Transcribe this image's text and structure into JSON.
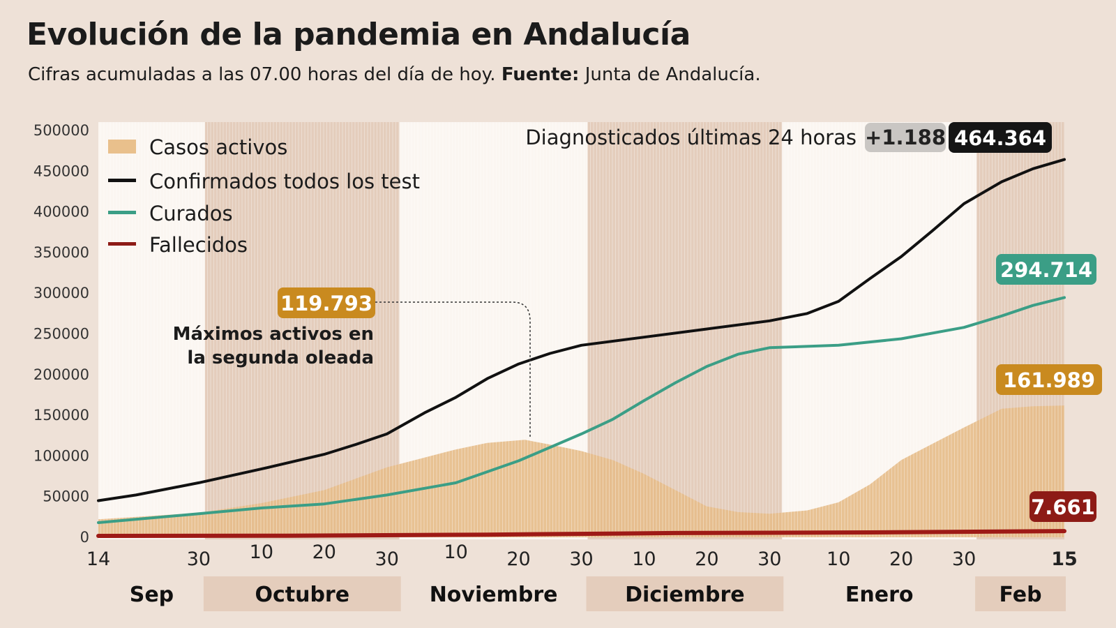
{
  "title": "Evolución de la pandemia en Andalucía",
  "subtitle": {
    "text": "Cifras acumuladas a las 07.00 horas del día de hoy.",
    "source_label": "Fuente:",
    "source": "Junta de Andalucía."
  },
  "chart_data": {
    "type": "line",
    "title": "Evolución de la pandemia en Andalucía",
    "ylim": [
      0,
      500000
    ],
    "yticks": [
      0,
      50000,
      100000,
      150000,
      200000,
      250000,
      300000,
      350000,
      400000,
      450000,
      500000
    ],
    "xrange": [
      "2020-09-14",
      "2021-02-15"
    ],
    "xticks": [
      {
        "date": "2020-09-14",
        "label": "14"
      },
      {
        "date": "2020-09-30",
        "label": "30"
      },
      {
        "date": "2020-10-10",
        "label": "10"
      },
      {
        "date": "2020-10-20",
        "label": "20"
      },
      {
        "date": "2020-10-30",
        "label": "30"
      },
      {
        "date": "2020-11-10",
        "label": "10"
      },
      {
        "date": "2020-11-20",
        "label": "20"
      },
      {
        "date": "2020-11-30",
        "label": "30"
      },
      {
        "date": "2020-12-10",
        "label": "10"
      },
      {
        "date": "2020-12-20",
        "label": "20"
      },
      {
        "date": "2020-12-30",
        "label": "30"
      },
      {
        "date": "2021-01-10",
        "label": "10"
      },
      {
        "date": "2021-01-20",
        "label": "20"
      },
      {
        "date": "2021-01-30",
        "label": "30"
      },
      {
        "date": "2021-02-15",
        "label": "15"
      }
    ],
    "months": [
      {
        "label": "Sep",
        "start": "2020-09-14",
        "end": "2020-10-01",
        "shaded": false
      },
      {
        "label": "Octubre",
        "start": "2020-10-01",
        "end": "2020-11-01",
        "shaded": true
      },
      {
        "label": "Noviembre",
        "start": "2020-11-01",
        "end": "2020-12-01",
        "shaded": false
      },
      {
        "label": "Diciembre",
        "start": "2020-12-01",
        "end": "2021-01-01",
        "shaded": true
      },
      {
        "label": "Enero",
        "start": "2021-01-01",
        "end": "2021-02-01",
        "shaded": false
      },
      {
        "label": "Feb",
        "start": "2021-02-01",
        "end": "2021-02-15",
        "shaded": true
      }
    ],
    "grid": "vertical daily lines",
    "legend_position": "top-left",
    "series": [
      {
        "name": "Casos activos",
        "kind": "area",
        "color": "#e6bd8b",
        "points": [
          [
            "2020-09-14",
            22000
          ],
          [
            "2020-09-30",
            30000
          ],
          [
            "2020-10-10",
            42000
          ],
          [
            "2020-10-20",
            58000
          ],
          [
            "2020-10-30",
            86000
          ],
          [
            "2020-11-05",
            98000
          ],
          [
            "2020-11-10",
            108000
          ],
          [
            "2020-11-15",
            116000
          ],
          [
            "2020-11-21",
            119793
          ],
          [
            "2020-11-25",
            114000
          ],
          [
            "2020-11-30",
            106000
          ],
          [
            "2020-12-05",
            95000
          ],
          [
            "2020-12-10",
            78000
          ],
          [
            "2020-12-15",
            58000
          ],
          [
            "2020-12-20",
            38000
          ],
          [
            "2020-12-25",
            31000
          ],
          [
            "2020-12-30",
            29000
          ],
          [
            "2021-01-05",
            33000
          ],
          [
            "2021-01-10",
            43000
          ],
          [
            "2021-01-15",
            65000
          ],
          [
            "2021-01-20",
            95000
          ],
          [
            "2021-01-25",
            115000
          ],
          [
            "2021-01-30",
            135000
          ],
          [
            "2021-02-05",
            158000
          ],
          [
            "2021-02-10",
            161000
          ],
          [
            "2021-02-15",
            161989
          ]
        ]
      },
      {
        "name": "Confirmados todos los test",
        "kind": "line",
        "color": "#111111",
        "points": [
          [
            "2020-09-14",
            45000
          ],
          [
            "2020-09-20",
            52000
          ],
          [
            "2020-09-30",
            67000
          ],
          [
            "2020-10-10",
            84000
          ],
          [
            "2020-10-20",
            102000
          ],
          [
            "2020-10-25",
            114000
          ],
          [
            "2020-10-30",
            127000
          ],
          [
            "2020-11-05",
            153000
          ],
          [
            "2020-11-10",
            172000
          ],
          [
            "2020-11-15",
            195000
          ],
          [
            "2020-11-20",
            213000
          ],
          [
            "2020-11-25",
            226000
          ],
          [
            "2020-11-30",
            236000
          ],
          [
            "2020-12-10",
            246000
          ],
          [
            "2020-12-20",
            256000
          ],
          [
            "2020-12-30",
            266000
          ],
          [
            "2021-01-05",
            275000
          ],
          [
            "2021-01-10",
            290000
          ],
          [
            "2021-01-15",
            318000
          ],
          [
            "2021-01-20",
            345000
          ],
          [
            "2021-01-25",
            377000
          ],
          [
            "2021-01-30",
            410000
          ],
          [
            "2021-02-05",
            437000
          ],
          [
            "2021-02-10",
            453000
          ],
          [
            "2021-02-15",
            464364
          ]
        ]
      },
      {
        "name": "Curados",
        "kind": "line",
        "color": "#3b9e86",
        "points": [
          [
            "2020-09-14",
            18000
          ],
          [
            "2020-09-30",
            29000
          ],
          [
            "2020-10-10",
            36000
          ],
          [
            "2020-10-20",
            41000
          ],
          [
            "2020-10-30",
            52000
          ],
          [
            "2020-11-10",
            67000
          ],
          [
            "2020-11-20",
            94000
          ],
          [
            "2020-11-30",
            127000
          ],
          [
            "2020-12-05",
            145000
          ],
          [
            "2020-12-10",
            168000
          ],
          [
            "2020-12-15",
            190000
          ],
          [
            "2020-12-20",
            210000
          ],
          [
            "2020-12-25",
            225000
          ],
          [
            "2020-12-30",
            233000
          ],
          [
            "2021-01-10",
            236000
          ],
          [
            "2021-01-20",
            244000
          ],
          [
            "2021-01-30",
            258000
          ],
          [
            "2021-02-05",
            272000
          ],
          [
            "2021-02-10",
            285000
          ],
          [
            "2021-02-15",
            294714
          ]
        ]
      },
      {
        "name": "Fallecidos",
        "kind": "line",
        "color": "#9e1a16",
        "points": [
          [
            "2020-09-14",
            1700
          ],
          [
            "2020-10-14",
            2000
          ],
          [
            "2020-11-15",
            3300
          ],
          [
            "2020-12-15",
            5200
          ],
          [
            "2021-01-15",
            6000
          ],
          [
            "2021-02-15",
            7661
          ]
        ]
      }
    ],
    "annotations": {
      "diagnosed_label": "Diagnosticados últimas 24 horas",
      "diagnosed_delta": "+1.188",
      "confirmed_total": "464.364",
      "recovered_total": "294.714",
      "active_total": "161.989",
      "deaths_total": "7.661",
      "peak_value": "119.793",
      "peak_date": "2020-11-21",
      "peak_text_1": "Máximos activos en",
      "peak_text_2": "la segunda oleada"
    }
  },
  "colors": {
    "background": "#eee1d7",
    "band": "#e4cdbc",
    "plot": "#fbf6f1",
    "active_box": "#c98a1f",
    "recovered_box": "#3b9e86",
    "deaths_box": "#8d1b16",
    "confirmed_box": "#151515",
    "delta_box": "#c9c6c3"
  }
}
